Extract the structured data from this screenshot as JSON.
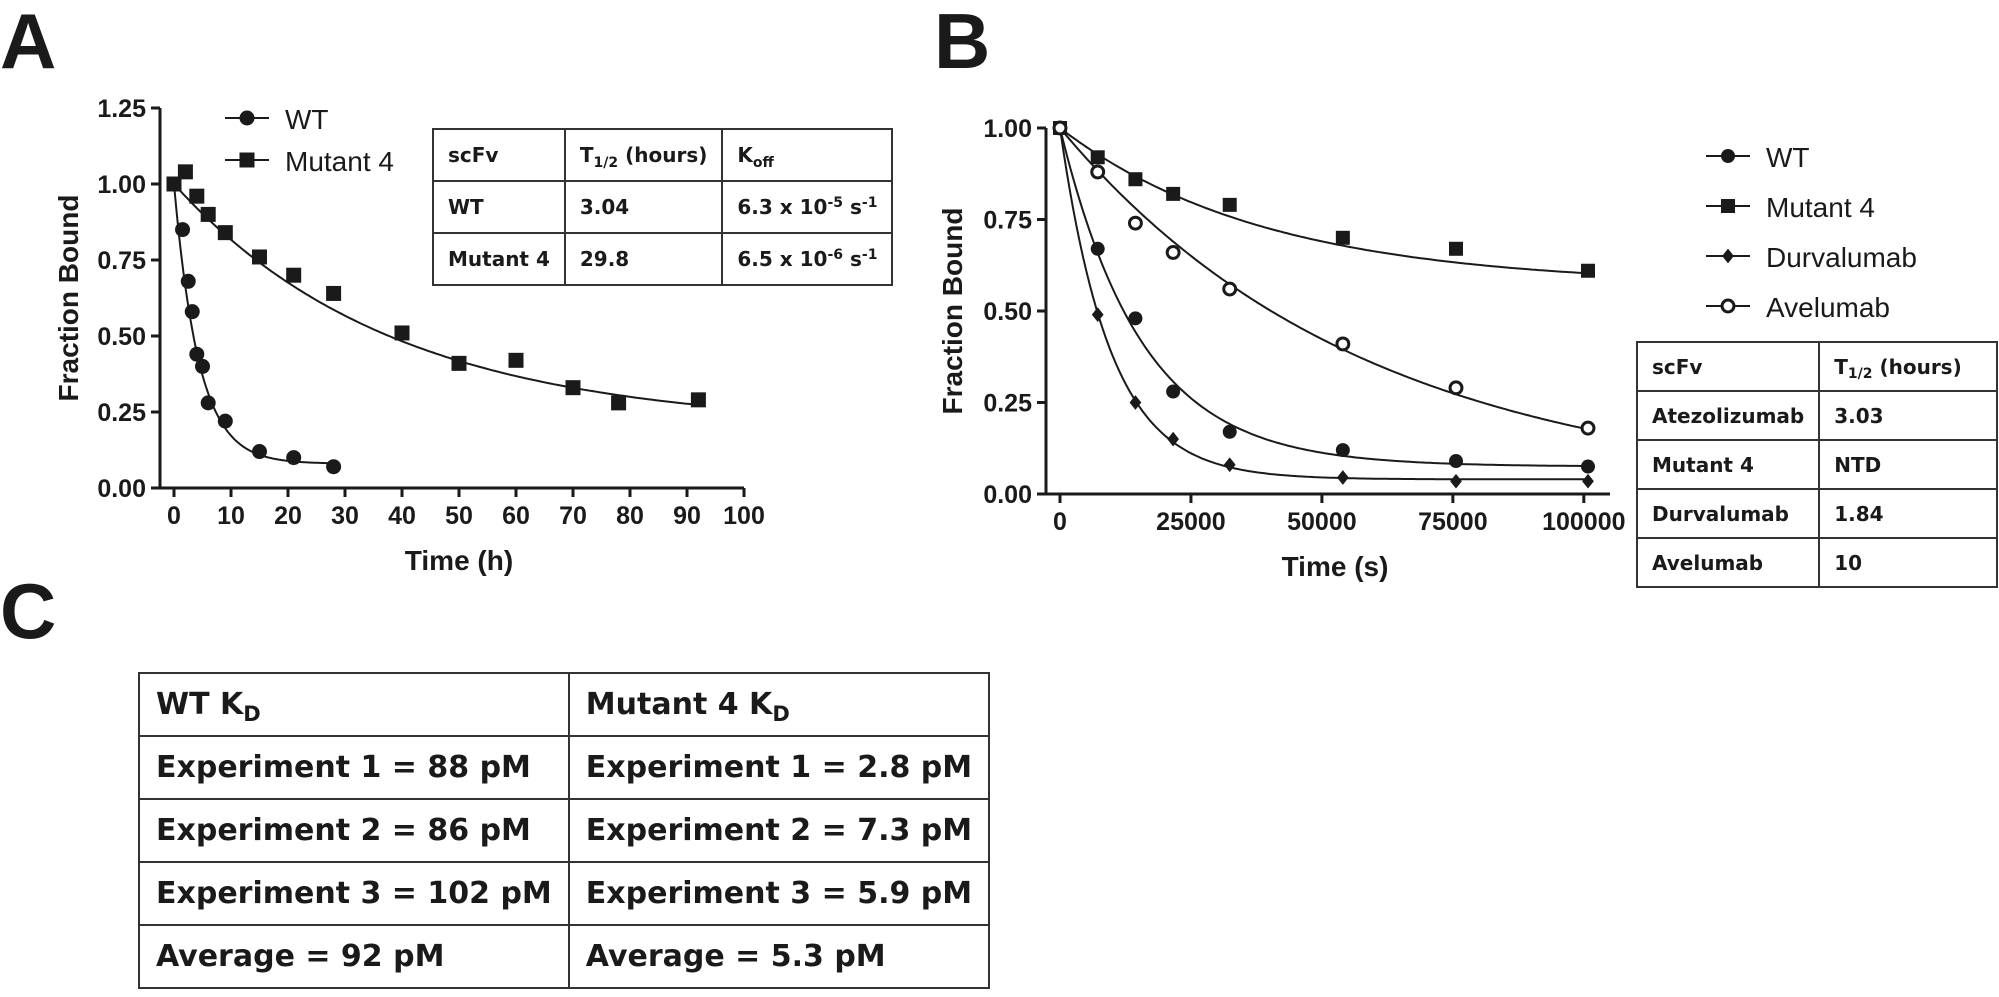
{
  "panels": {
    "a": "A",
    "b": "B",
    "c": "C"
  },
  "colors": {
    "ink": "#1a1a1a"
  },
  "chart_data": [
    {
      "id": "A",
      "type": "scatter",
      "xlabel": "Time (h)",
      "ylabel": "Fraction Bound",
      "xlim": [
        0,
        100
      ],
      "ylim": [
        0,
        1.25
      ],
      "xticks": [
        0,
        10,
        20,
        30,
        40,
        50,
        60,
        70,
        80,
        90,
        100
      ],
      "yticks": [
        0,
        0.25,
        0.5,
        0.75,
        1.0,
        1.25
      ],
      "xtick_labels": [
        "0",
        "10",
        "20",
        "30",
        "40",
        "50",
        "60",
        "70",
        "80",
        "90",
        "100"
      ],
      "ytick_labels": [
        "0.00",
        "0.25",
        "0.50",
        "0.75",
        "1.00",
        "1.25"
      ],
      "legend_position": "top-left",
      "series": [
        {
          "name": "WT",
          "marker": "circle",
          "x": [
            0,
            1.5,
            2.5,
            3.2,
            4.0,
            5.0,
            6.0,
            9.0,
            15.0,
            21.0,
            28.0
          ],
          "y": [
            1.0,
            0.85,
            0.68,
            0.58,
            0.44,
            0.4,
            0.28,
            0.22,
            0.12,
            0.1,
            0.07
          ],
          "fit": {
            "plateau": 0.08,
            "k": 0.23,
            "xmax": 28
          }
        },
        {
          "name": "Mutant 4",
          "marker": "square",
          "x": [
            0,
            2.0,
            4.0,
            6.0,
            9.0,
            15.0,
            21.0,
            28.0,
            40.0,
            50.0,
            60.0,
            70.0,
            78.0,
            92.0
          ],
          "y": [
            1.0,
            1.04,
            0.96,
            0.9,
            0.84,
            0.76,
            0.7,
            0.64,
            0.51,
            0.41,
            0.42,
            0.33,
            0.28,
            0.29
          ],
          "fit": {
            "plateau": 0.2,
            "k": 0.026,
            "xmax": 92
          }
        }
      ]
    },
    {
      "id": "B",
      "type": "scatter",
      "xlabel": "Time (s)",
      "ylabel": "Fraction Bound",
      "xlim": [
        0,
        105000
      ],
      "ylim": [
        0,
        1.0
      ],
      "xticks": [
        0,
        25000,
        50000,
        75000,
        100000
      ],
      "yticks": [
        0,
        0.25,
        0.5,
        0.75,
        1.0
      ],
      "xtick_labels": [
        "0",
        "25000",
        "50000",
        "75000",
        "100000"
      ],
      "ytick_labels": [
        "0.00",
        "0.25",
        "0.50",
        "0.75",
        "1.00"
      ],
      "legend_position": "right",
      "series": [
        {
          "name": "WT",
          "marker": "circle",
          "x": [
            0,
            7200,
            14400,
            21600,
            32400,
            54000,
            75600,
            100800
          ],
          "y": [
            1.0,
            0.67,
            0.48,
            0.28,
            0.17,
            0.12,
            0.09,
            0.075
          ],
          "fit": {
            "plateau": 0.075,
            "k": 6.4e-05,
            "xmax": 100800
          }
        },
        {
          "name": "Mutant 4",
          "marker": "square",
          "x": [
            0,
            7200,
            14400,
            21600,
            32400,
            54000,
            75600,
            100800
          ],
          "y": [
            1.0,
            0.92,
            0.86,
            0.82,
            0.79,
            0.7,
            0.67,
            0.61
          ],
          "fit": {
            "plateau": 0.57,
            "k": 2.55e-05,
            "xmax": 100800
          }
        },
        {
          "name": "Durvalumab",
          "marker": "diamond",
          "x": [
            0,
            7200,
            14400,
            21600,
            32400,
            54000,
            75600,
            100800
          ],
          "y": [
            1.0,
            0.49,
            0.25,
            0.15,
            0.08,
            0.045,
            0.035,
            0.035
          ],
          "fit": {
            "plateau": 0.04,
            "k": 0.000104,
            "xmax": 100800
          }
        },
        {
          "name": "Avelumab",
          "marker": "open-circle",
          "x": [
            0,
            7200,
            14400,
            21600,
            32400,
            54000,
            75600,
            100800
          ],
          "y": [
            1.0,
            0.88,
            0.74,
            0.66,
            0.56,
            0.41,
            0.29,
            0.18
          ],
          "fit": {
            "plateau": 0.0,
            "k": 1.72e-05,
            "xmax": 100800
          }
        }
      ]
    }
  ],
  "tableA": {
    "h1": "scFv",
    "h2_main": "T",
    "h2_sub": "1/2",
    "h2_tail": " (hours)",
    "h3_main": "K",
    "h3_sub": "off",
    "rows": [
      {
        "name": "WT",
        "t": "3.04",
        "k_pre": "6.3 x 10",
        "k_exp": "-5",
        "k_mid": " s",
        "k_exp2": "-1"
      },
      {
        "name": "Mutant 4",
        "t": "29.8",
        "k_pre": "6.5 x 10",
        "k_exp": "-6",
        "k_mid": " s",
        "k_exp2": "-1"
      }
    ]
  },
  "tableB": {
    "h1": "scFv",
    "h2_main": "T",
    "h2_sub": "1/2",
    "h2_tail": " (hours)",
    "rows": [
      {
        "name": "Atezolizumab",
        "t": "3.03"
      },
      {
        "name": "Mutant 4",
        "t": "NTD"
      },
      {
        "name": "Durvalumab",
        "t": "1.84"
      },
      {
        "name": "Avelumab",
        "t": "10"
      }
    ]
  },
  "tableC": {
    "h1_main": "WT K",
    "h1_sub": "D",
    "h2_main": "Mutant 4 K",
    "h2_sub": "D",
    "rows": [
      [
        "Experiment 1 = 88 pM",
        "Experiment 1 = 2.8 pM"
      ],
      [
        "Experiment 2 = 86 pM",
        "Experiment 2 = 7.3 pM"
      ],
      [
        "Experiment 3 = 102 pM",
        "Experiment 3 = 5.9 pM"
      ],
      [
        "Average = 92 pM",
        "Average = 5.3 pM"
      ]
    ]
  }
}
